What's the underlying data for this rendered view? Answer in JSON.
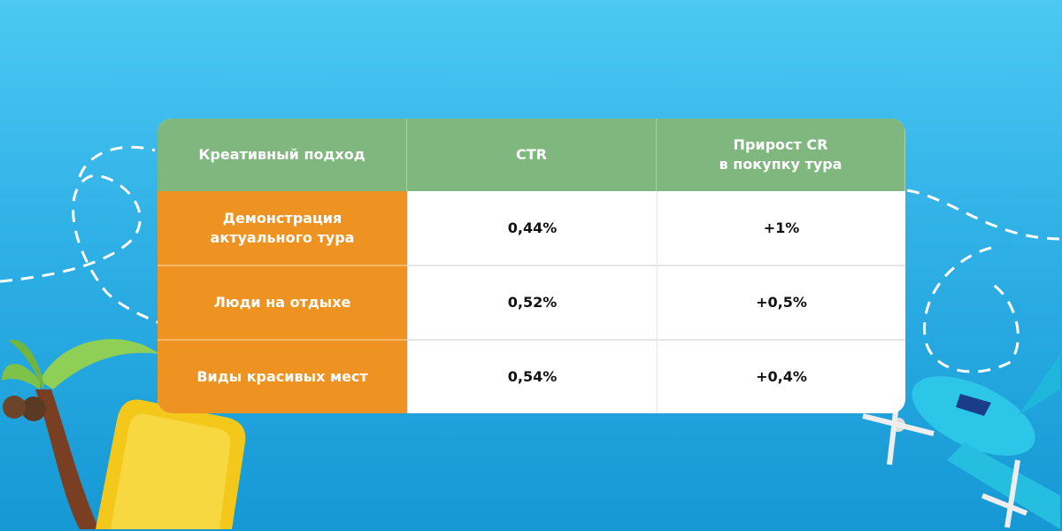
{
  "table": {
    "headers": [
      "Креативный подход",
      "CTR",
      "Прирост CR\nв покупку тура"
    ],
    "rows": [
      {
        "approach": "Демонстрация актуального тура",
        "ctr": "0,44%",
        "cr_growth": "+1%"
      },
      {
        "approach": "Люди на отдыхе",
        "ctr": "0,52%",
        "cr_growth": "+0,5%"
      },
      {
        "approach": "Виды красивых мест",
        "ctr": "0,54%",
        "cr_growth": "+0,4%"
      }
    ]
  },
  "colors": {
    "header": "#7fb77e",
    "label_column": "#ee9321",
    "background": "#2fb0e6"
  },
  "decorations": [
    "palm-tree-icon",
    "suitcase-icon",
    "airplane-icon",
    "dashed-flight-path"
  ]
}
